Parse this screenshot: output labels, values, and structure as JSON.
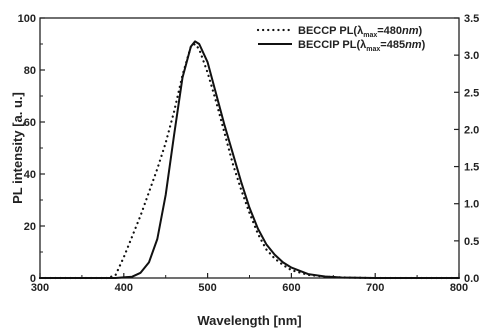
{
  "chart_data": {
    "type": "line",
    "xlabel": "Wavelength [nm]",
    "ylabel": "PL intensity [a. u.]",
    "xlim": [
      300,
      800
    ],
    "ylim": [
      0,
      100
    ],
    "y2lim": [
      0,
      3.5
    ],
    "x_ticks": [
      300,
      400,
      500,
      600,
      700,
      800
    ],
    "y_ticks": [
      0,
      20,
      40,
      60,
      80,
      100
    ],
    "y2_ticks": [
      "0.0",
      "0.5",
      "1.0",
      "1.5",
      "2.0",
      "2.5",
      "3.0",
      "3.5"
    ],
    "legend_position": "top-right",
    "series": [
      {
        "name": "BECCP PL(λmax=480nm)",
        "label_parts": [
          "BECCP PL(",
          "λ",
          "max",
          "=480",
          "nm",
          ")"
        ],
        "style": "dotted",
        "x": [
          300,
          380,
          390,
          400,
          410,
          420,
          430,
          440,
          450,
          460,
          470,
          480,
          485,
          490,
          500,
          510,
          520,
          530,
          540,
          550,
          560,
          570,
          580,
          590,
          600,
          620,
          640,
          660,
          700,
          800
        ],
        "y": [
          0,
          0,
          1,
          8,
          16,
          24,
          33,
          42,
          52,
          64,
          78,
          89,
          90,
          88,
          79,
          68,
          56,
          44,
          34,
          25,
          17,
          11,
          7.5,
          5,
          3,
          1.2,
          0.5,
          0.2,
          0,
          0
        ]
      },
      {
        "name": "BECCIP PL(λmax=485nm)",
        "label_parts": [
          "BECCIP PL(",
          "λ",
          "max",
          "=485",
          "nm",
          ")"
        ],
        "style": "solid",
        "x": [
          300,
          390,
          410,
          420,
          430,
          440,
          450,
          460,
          470,
          480,
          485,
          490,
          500,
          510,
          520,
          530,
          540,
          550,
          560,
          570,
          580,
          590,
          600,
          620,
          640,
          660,
          700,
          800
        ],
        "y": [
          0,
          0,
          0.5,
          2,
          6,
          15,
          32,
          55,
          77,
          89,
          91,
          90,
          83,
          71,
          59,
          48,
          37,
          27,
          19,
          13,
          9,
          6,
          4,
          1.5,
          0.6,
          0.2,
          0,
          0
        ]
      }
    ]
  }
}
